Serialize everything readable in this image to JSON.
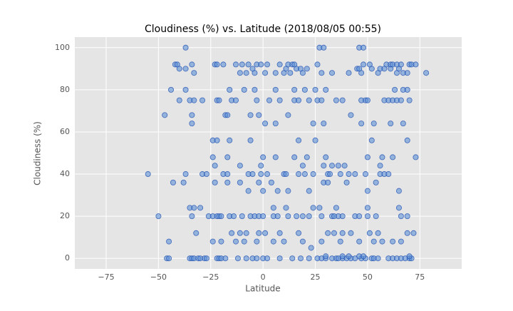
{
  "chart_data": {
    "type": "scatter",
    "title": "Cloudiness (%) vs. Latitude (2018/08/05 00:55)",
    "x_label": "Latitude",
    "y_label": "Cloudiness (%)",
    "x": [
      -46,
      -45,
      -35,
      -34,
      -33,
      -31,
      -30,
      -28,
      -27,
      -22,
      -21,
      -20,
      -18,
      -12,
      -8,
      -5,
      -3,
      0,
      2,
      8,
      14,
      18,
      22,
      26,
      28,
      30,
      33,
      35,
      36,
      38,
      40,
      42,
      44,
      47,
      49,
      52,
      53,
      55,
      60,
      62,
      64,
      66,
      68,
      70,
      71,
      30,
      38,
      41,
      46,
      48,
      70,
      -50,
      -34,
      -26,
      -24,
      -22,
      -21,
      -20,
      -16,
      -14,
      -10,
      -6,
      -4,
      -2,
      0,
      5,
      7,
      12,
      16,
      19,
      22,
      28,
      33,
      34,
      36,
      38,
      44,
      46,
      50,
      54,
      66,
      69,
      -55,
      -37,
      -29,
      -27,
      -19,
      -17,
      -7,
      -5,
      -1,
      2,
      10,
      11,
      17,
      20,
      24,
      31,
      32,
      37,
      41,
      44,
      49,
      56,
      58,
      60,
      -40,
      -35,
      -33,
      -29,
      -22,
      -21,
      -15,
      -13,
      -3,
      3,
      8,
      15,
      17,
      22,
      26,
      28,
      35,
      38,
      47,
      49,
      50,
      58,
      60,
      62,
      64,
      66,
      70,
      -33,
      -11,
      -8,
      -4,
      1,
      6,
      10,
      13,
      19,
      28,
      33,
      41,
      47,
      55,
      64,
      67,
      69,
      78,
      -40,
      -37,
      -5,
      11,
      16,
      18,
      21,
      45,
      46,
      52,
      56,
      58,
      61,
      65,
      -42,
      -41,
      -34,
      -23,
      -22,
      -19,
      -13,
      -10,
      -7,
      -3,
      -1,
      2,
      8,
      12,
      14,
      15,
      26,
      48,
      51,
      59,
      61,
      62,
      64,
      66,
      70,
      71,
      73,
      -37,
      27,
      29,
      46,
      48,
      -44,
      -37,
      -16,
      -9,
      -4,
      6,
      15,
      20,
      25,
      30,
      63,
      67,
      69,
      -47,
      -34,
      -18,
      -17,
      -6,
      -2,
      12,
      42,
      -34,
      1,
      6,
      24,
      29,
      47,
      53,
      61,
      67,
      -24,
      -22,
      -16,
      -6,
      17,
      25,
      52,
      69,
      -24,
      -17,
      0,
      6,
      15,
      21,
      30,
      50,
      57,
      62,
      73,
      -23,
      -11,
      -1,
      19,
      29,
      33,
      36,
      39,
      56,
      -43,
      -38,
      -23,
      -17,
      -11,
      -2,
      4,
      29,
      31,
      40,
      54,
      -7,
      0,
      7,
      12,
      22,
      50,
      65,
      -35,
      -33,
      -30,
      5,
      11,
      24,
      27,
      35,
      50,
      65,
      -32,
      -15,
      -11,
      -8,
      -2,
      1,
      8,
      17,
      31,
      34,
      38,
      42,
      51,
      55,
      69,
      72,
      -45,
      -24,
      -20,
      -13,
      -9,
      -3,
      5,
      10,
      19,
      28,
      37,
      46,
      53,
      57,
      62,
      66,
      23
    ],
    "values": [
      0,
      0,
      0,
      0,
      0,
      0,
      0,
      0,
      0,
      0,
      0,
      0,
      0,
      0,
      0,
      0,
      0,
      0,
      0,
      0,
      0,
      0,
      0,
      0,
      0,
      0,
      0,
      0,
      0,
      0,
      0,
      0,
      0,
      0,
      0,
      0,
      0,
      0,
      0,
      0,
      0,
      0,
      0,
      0,
      0,
      1,
      1,
      1,
      1,
      1,
      1,
      20,
      20,
      20,
      20,
      20,
      20,
      20,
      20,
      20,
      20,
      20,
      20,
      20,
      20,
      20,
      20,
      20,
      20,
      20,
      20,
      20,
      20,
      20,
      20,
      20,
      20,
      20,
      20,
      20,
      20,
      20,
      40,
      40,
      40,
      40,
      40,
      40,
      40,
      40,
      40,
      40,
      40,
      40,
      40,
      40,
      40,
      40,
      40,
      40,
      40,
      40,
      40,
      40,
      40,
      40,
      75,
      75,
      75,
      75,
      75,
      75,
      75,
      75,
      75,
      75,
      75,
      75,
      75,
      75,
      75,
      75,
      75,
      75,
      75,
      75,
      75,
      75,
      75,
      75,
      75,
      75,
      75,
      88,
      88,
      88,
      88,
      88,
      88,
      88,
      88,
      88,
      88,
      88,
      88,
      88,
      88,
      88,
      88,
      88,
      88,
      90,
      90,
      90,
      90,
      90,
      90,
      90,
      90,
      90,
      90,
      90,
      90,
      90,
      90,
      92,
      92,
      92,
      92,
      92,
      92,
      92,
      92,
      92,
      92,
      92,
      92,
      92,
      92,
      92,
      92,
      92,
      92,
      92,
      92,
      92,
      92,
      92,
      92,
      92,
      92,
      92,
      100,
      100,
      100,
      100,
      100,
      80,
      80,
      80,
      80,
      80,
      80,
      80,
      80,
      80,
      80,
      80,
      80,
      80,
      68,
      68,
      68,
      68,
      68,
      68,
      68,
      68,
      64,
      64,
      64,
      64,
      64,
      64,
      64,
      64,
      64,
      56,
      56,
      56,
      56,
      56,
      56,
      56,
      56,
      48,
      48,
      48,
      48,
      48,
      48,
      48,
      48,
      48,
      48,
      48,
      44,
      44,
      44,
      44,
      44,
      44,
      44,
      44,
      44,
      36,
      36,
      36,
      36,
      36,
      36,
      36,
      36,
      36,
      36,
      36,
      32,
      32,
      32,
      32,
      32,
      32,
      32,
      24,
      24,
      24,
      24,
      24,
      24,
      24,
      24,
      24,
      24,
      12,
      12,
      12,
      12,
      12,
      12,
      12,
      12,
      12,
      12,
      12,
      12,
      12,
      12,
      12,
      12,
      8,
      8,
      8,
      8,
      8,
      8,
      8,
      8,
      8,
      8,
      8,
      8,
      8,
      8,
      8,
      8,
      5
    ],
    "color": "#5b8fd6",
    "edge_color": "#1f4fb0",
    "xlim": [
      -90,
      95
    ],
    "ylim": [
      -5,
      105
    ],
    "xticks": [
      {
        "value": -75,
        "label": "−75"
      },
      {
        "value": -50,
        "label": "−50"
      },
      {
        "value": -25,
        "label": "−25"
      },
      0,
      25,
      50,
      75
    ],
    "yticks": [
      0,
      20,
      40,
      60,
      80,
      100
    ],
    "grid": true
  }
}
